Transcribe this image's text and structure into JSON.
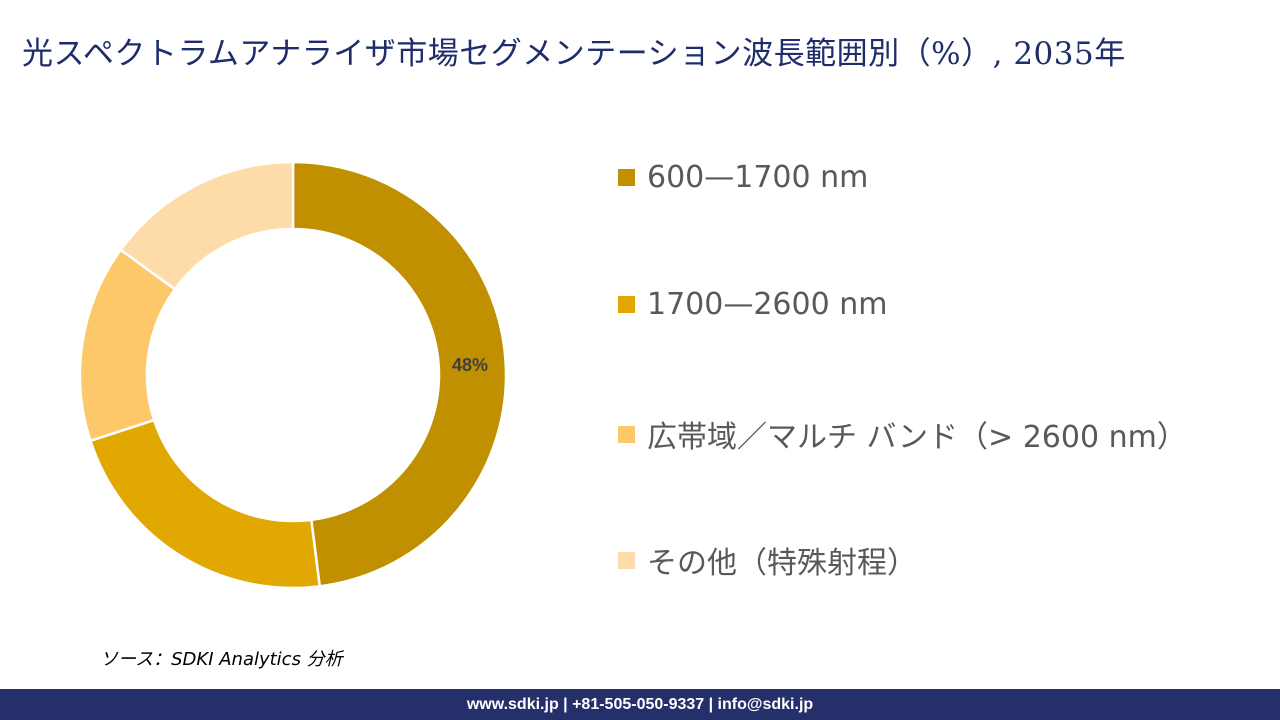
{
  "title": "光スペクトラムアナライザ市場セグメンテーション波長範囲別（%）, 2035年",
  "legend": [
    {
      "label": "600—1700 nm",
      "color": "#c09000"
    },
    {
      "label": "1700—2600 nm",
      "color": "#e0a800"
    },
    {
      "label": "広帯域／マルチ バンド（> 2600 nm）",
      "color": "#fdc86a"
    },
    {
      "label": "その他（特殊射程）",
      "color": "#fddcaa"
    }
  ],
  "data_label": "48%",
  "source": "ソース：SDKI Analytics 分析",
  "footer": "www.sdki.jp | +81-505-050-9337 | info@sdki.jp",
  "chart_data": {
    "type": "pie",
    "subtype": "donut",
    "title": "光スペクトラムアナライザ市場セグメンテーション波長範囲別（%）, 2035年",
    "categories": [
      "600—1700 nm",
      "1700—2600 nm",
      "広帯域／マルチ バンド（> 2600 nm）",
      "その他（特殊射程）"
    ],
    "values": [
      48,
      22,
      15,
      15
    ],
    "colors": [
      "#c09000",
      "#e0a800",
      "#fdc86a",
      "#fddcaa"
    ],
    "data_labels": [
      "48%",
      "",
      "",
      ""
    ],
    "legend_position": "right",
    "start_angle": 0,
    "direction": "clockwise"
  }
}
